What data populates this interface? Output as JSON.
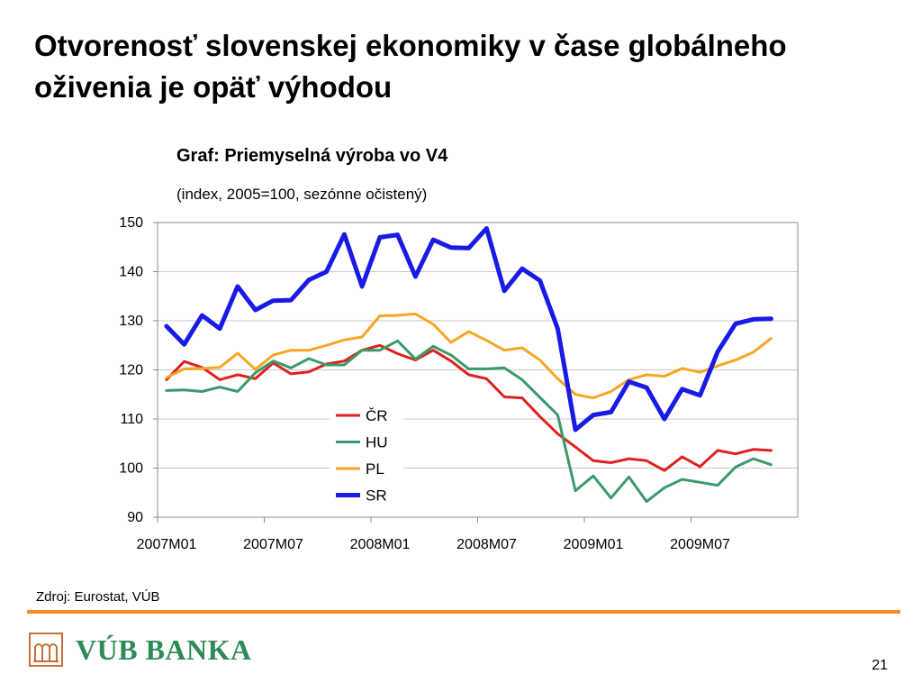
{
  "slide": {
    "title": "Otvorenosť slovenskej ekonomiky v čase globálneho oživenia je opäť výhodou",
    "source": "Zdroj: Eurostat, VÚB",
    "logo_text": "VÚB BANKA",
    "page_number": "21"
  },
  "colors": {
    "accent_rule": "#F28C28",
    "logo": "#2E8B57"
  },
  "chart_data": {
    "type": "line",
    "title": "Graf: Priemyselná výroba vo V4",
    "subtitle": "(index, 2005=100, sezónne očistený)",
    "xlabel": "",
    "ylabel": "",
    "ylim": [
      90,
      150
    ],
    "yticks": [
      90,
      100,
      110,
      120,
      130,
      140,
      150
    ],
    "grid": true,
    "legend_position": "center",
    "x": [
      "2007M01",
      "2007M02",
      "2007M03",
      "2007M04",
      "2007M05",
      "2007M06",
      "2007M07",
      "2007M08",
      "2007M09",
      "2007M10",
      "2007M11",
      "2007M12",
      "2008M01",
      "2008M02",
      "2008M03",
      "2008M04",
      "2008M05",
      "2008M06",
      "2008M07",
      "2008M08",
      "2008M09",
      "2008M10",
      "2008M11",
      "2008M12",
      "2009M01",
      "2009M02",
      "2009M03",
      "2009M04",
      "2009M05",
      "2009M06",
      "2009M07",
      "2009M08",
      "2009M09",
      "2009M10",
      "2009M11",
      "2009M12"
    ],
    "xtick_labels": [
      "2007M01",
      "2007M07",
      "2008M01",
      "2008M07",
      "2009M01",
      "2009M07"
    ],
    "series": [
      {
        "name": "ČR",
        "color": "#E02020",
        "width": 3,
        "values": [
          118,
          121.7,
          120.5,
          118,
          119,
          118.2,
          121.4,
          119.2,
          119.6,
          121.2,
          121.8,
          124,
          125,
          123.3,
          122,
          124,
          121.8,
          119,
          118.2,
          114.5,
          114.3,
          110.5,
          107,
          104.3,
          101.5,
          101.1,
          101.9,
          101.5,
          99.5,
          102.3,
          100.3,
          103.6,
          102.9,
          103.8,
          103.6,
          null
        ]
      },
      {
        "name": "HU",
        "color": "#3A9A6A",
        "width": 3,
        "values": [
          115.8,
          115.9,
          115.6,
          116.5,
          115.6,
          119.4,
          121.8,
          120.4,
          122.3,
          121,
          121,
          124,
          124,
          125.9,
          122.2,
          124.8,
          123,
          120.2,
          120.2,
          120.4,
          118,
          114.4,
          110.8,
          95.4,
          98.4,
          93.9,
          98.2,
          93.2,
          96,
          97.7,
          97.1,
          96.5,
          100.2,
          101.9,
          100.7,
          null
        ]
      },
      {
        "name": "PL",
        "color": "#F5A623",
        "width": 3,
        "values": [
          118.4,
          120.2,
          120.3,
          120.5,
          123.4,
          120.1,
          123,
          124,
          124,
          125,
          126.1,
          126.7,
          131,
          131.1,
          131.4,
          129.3,
          125.6,
          127.8,
          126,
          124,
          124.5,
          122,
          118.2,
          115,
          114.3,
          115.6,
          118,
          119,
          118.7,
          120.3,
          119.5,
          120.8,
          122,
          123.6,
          126.4,
          null
        ]
      },
      {
        "name": "SR",
        "color": "#1A1AE6",
        "width": 5,
        "values": [
          128.9,
          125.2,
          131.1,
          128.4,
          137,
          132.2,
          134.1,
          134.2,
          138.3,
          140,
          147.6,
          137,
          147,
          147.5,
          139,
          146.5,
          144.9,
          144.8,
          148.8,
          136.1,
          140.6,
          138.2,
          128.4,
          107.8,
          110.8,
          111.4,
          117.6,
          116.4,
          110,
          116.1,
          114.8,
          123.7,
          129.4,
          130.3,
          130.4,
          null
        ]
      }
    ]
  }
}
